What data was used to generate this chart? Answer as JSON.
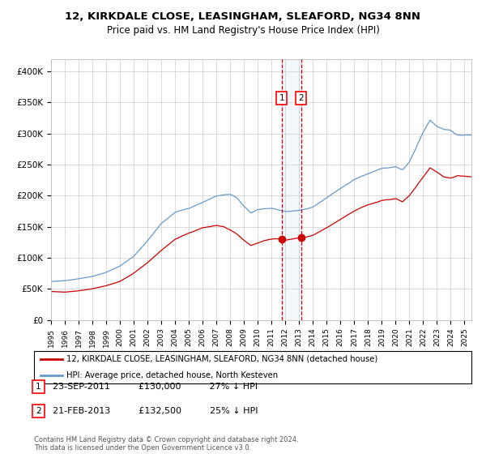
{
  "title": "12, KIRKDALE CLOSE, LEASINGHAM, SLEAFORD, NG34 8NN",
  "subtitle": "Price paid vs. HM Land Registry's House Price Index (HPI)",
  "legend_line1": "12, KIRKDALE CLOSE, LEASINGHAM, SLEAFORD, NG34 8NN (detached house)",
  "legend_line2": "HPI: Average price, detached house, North Kesteven",
  "annotation1_date": "23-SEP-2011",
  "annotation1_price": "£130,000",
  "annotation1_hpi": "27% ↓ HPI",
  "annotation2_date": "21-FEB-2013",
  "annotation2_price": "£132,500",
  "annotation2_hpi": "25% ↓ HPI",
  "sale1_year": 2011.73,
  "sale1_value": 130000,
  "sale2_year": 2013.13,
  "sale2_value": 132500,
  "footer": "Contains HM Land Registry data © Crown copyright and database right 2024.\nThis data is licensed under the Open Government Licence v3.0.",
  "hpi_color": "#6699cc",
  "price_color": "#cc0000",
  "background_color": "#ffffff",
  "grid_color": "#cccccc",
  "ylim": [
    0,
    420000
  ],
  "xlim_start": 1995.0,
  "xlim_end": 2025.5
}
